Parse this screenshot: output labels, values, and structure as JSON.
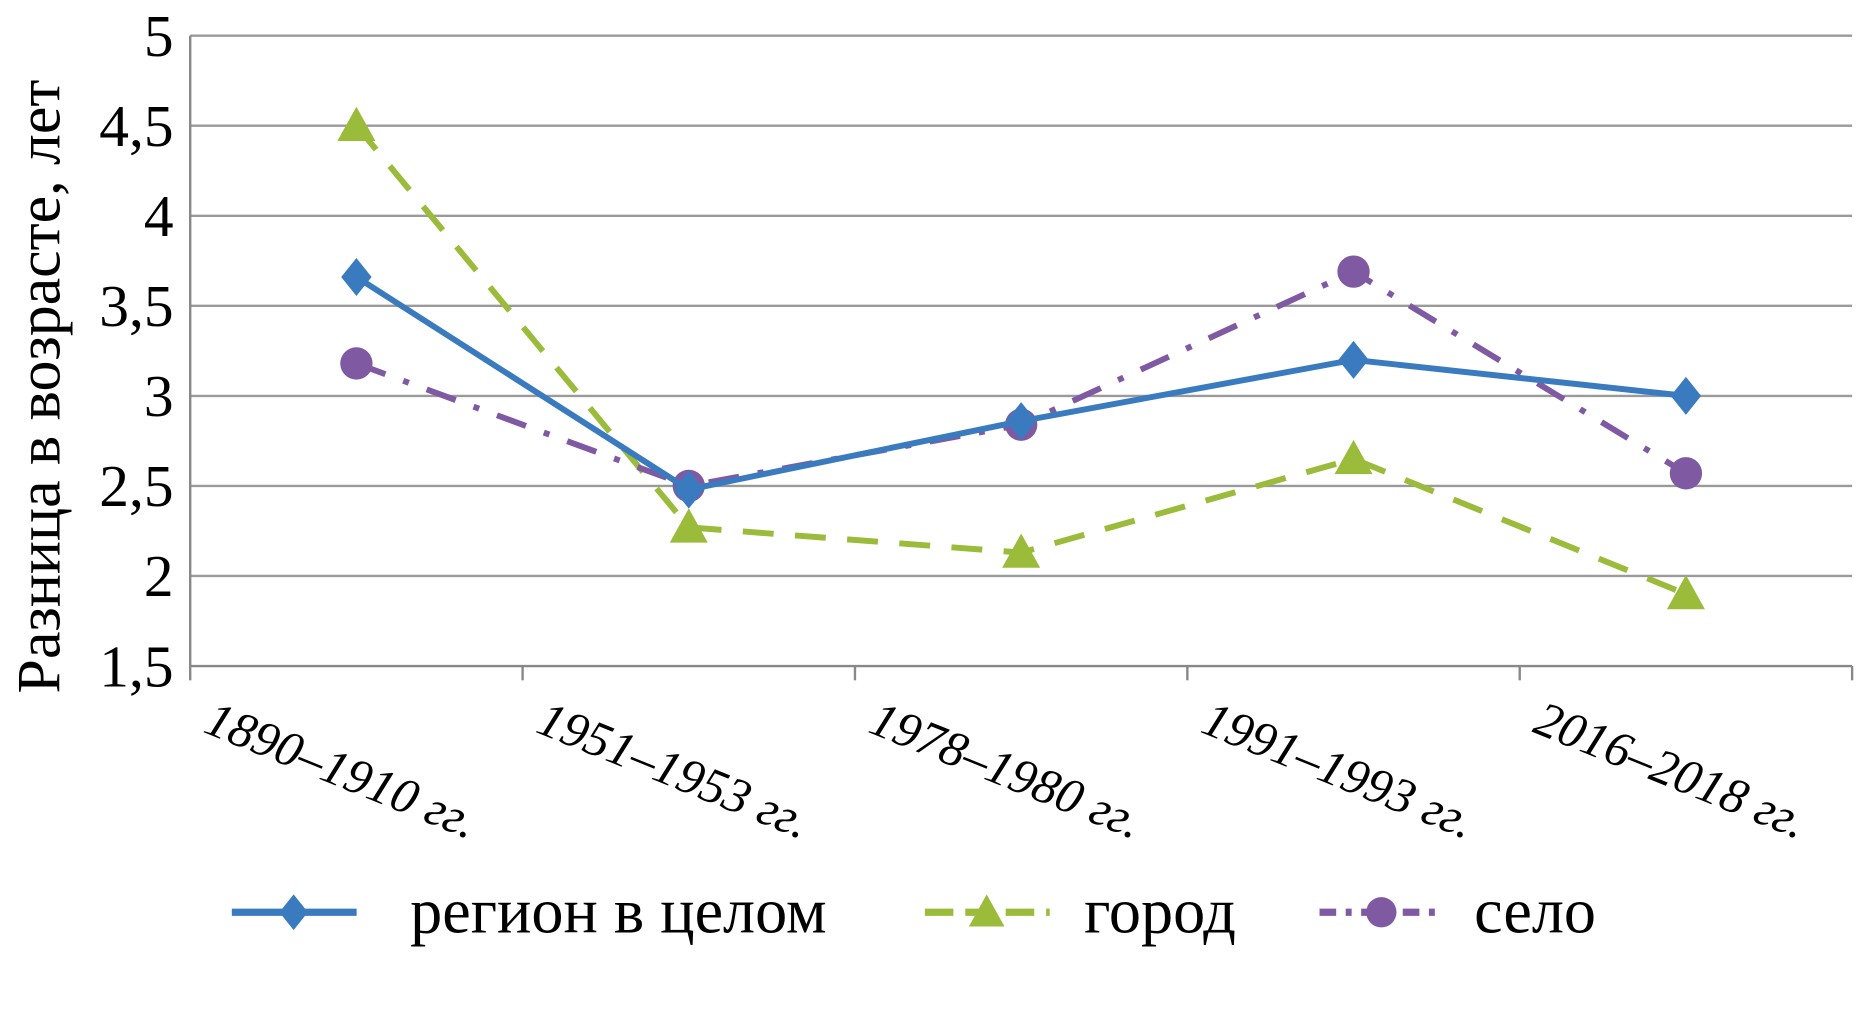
{
  "chart_data": {
    "type": "line",
    "title": "",
    "xlabel": "",
    "ylabel": "Разница в возрасте, лет",
    "ylim": [
      1.5,
      5
    ],
    "yticks": [
      "1,5",
      "2",
      "2,5",
      "3",
      "3,5",
      "4",
      "4,5",
      "5"
    ],
    "ytick_values": [
      1.5,
      2,
      2.5,
      3,
      3.5,
      4,
      4.5,
      5
    ],
    "grid": true,
    "legend_position": "bottom",
    "categories": [
      "1890–1910 гг.",
      "1951–1953 гг.",
      "1978–1980 гг.",
      "1991–1993 гг.",
      "2016–2018 гг."
    ],
    "series": [
      {
        "name": "регион в целом",
        "values": [
          3.66,
          2.48,
          2.86,
          3.2,
          3.0
        ],
        "color": "#3a7bbf",
        "marker": "diamond",
        "dash": "solid"
      },
      {
        "name": "город",
        "values": [
          4.5,
          2.27,
          2.13,
          2.65,
          1.9
        ],
        "color": "#9bbb3b",
        "marker": "triangle",
        "dash": "dashed"
      },
      {
        "name": "село",
        "values": [
          3.18,
          2.5,
          2.84,
          3.69,
          2.57
        ],
        "color": "#7f5aa2",
        "marker": "circle",
        "dash": "dash-dot"
      }
    ]
  }
}
